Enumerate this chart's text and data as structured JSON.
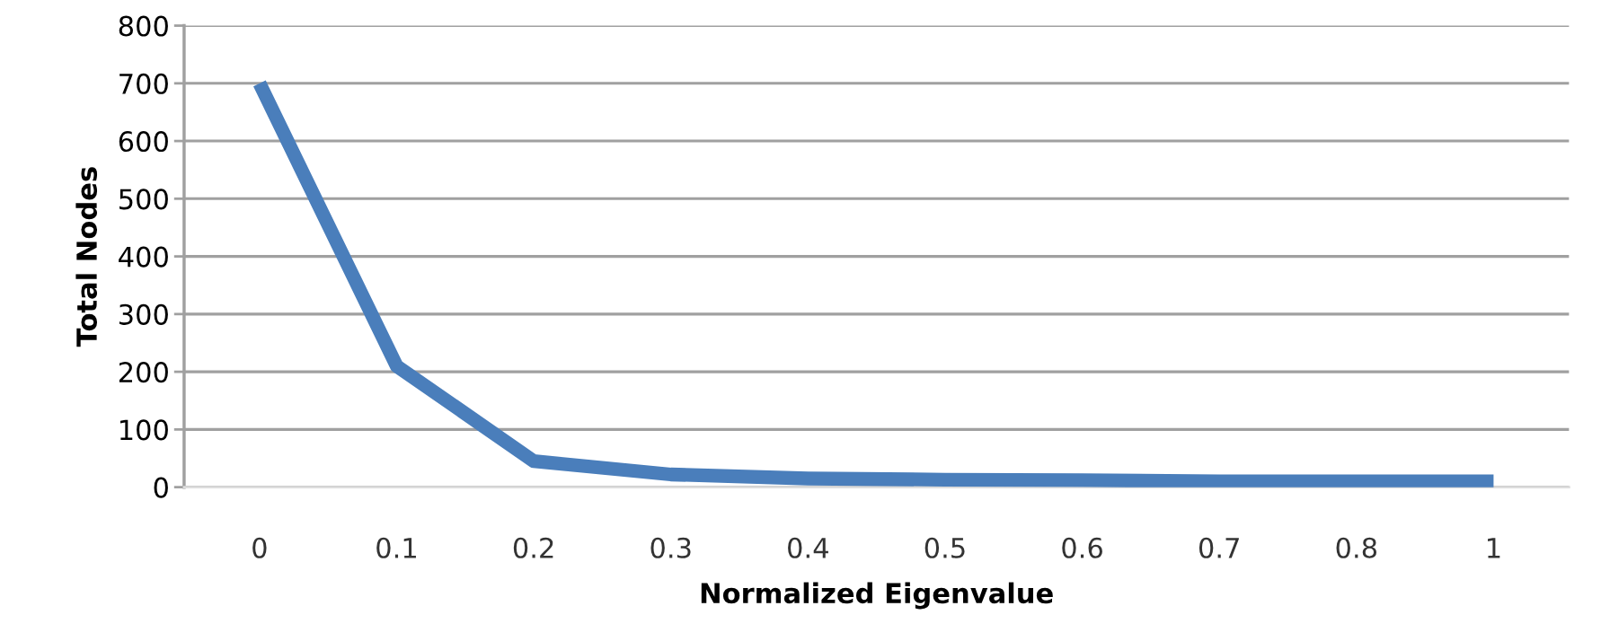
{
  "chart_data": {
    "type": "line",
    "xlabel": "Normalized Eigenvalue",
    "ylabel": "Total Nodes",
    "categories": [
      "0",
      "0.1",
      "0.2",
      "0.3",
      "0.4",
      "0.5",
      "0.6",
      "0.7",
      "0.8",
      "1"
    ],
    "series": [
      {
        "color": "#4a7ebb",
        "values": [
          700,
          210,
          45,
          22,
          15,
          13,
          12,
          10,
          10,
          10
        ]
      }
    ],
    "ylim": [
      0,
      800
    ],
    "yticks": [
      0,
      100,
      200,
      300,
      400,
      500,
      600,
      700,
      800
    ],
    "grid": "y",
    "marker": "none",
    "line_style": "solid"
  }
}
